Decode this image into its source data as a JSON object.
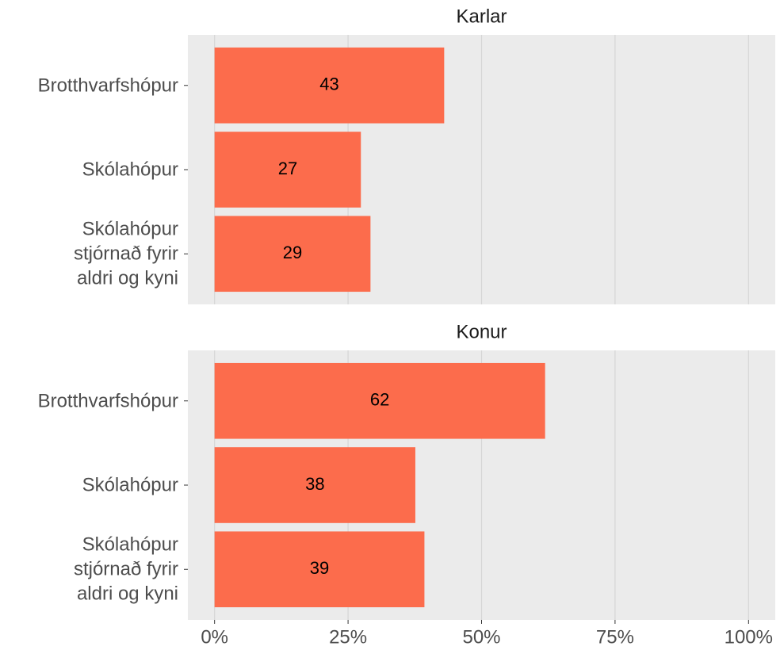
{
  "chart_data": [
    {
      "type": "bar",
      "title": "Karlar",
      "categories": [
        "Brotthvarfshópur",
        "Skólahópur",
        "Skólahópur\nstjórnað fyrir\naldri og kyni"
      ],
      "values": [
        43,
        27.4,
        29.2
      ],
      "value_labels": [
        "43",
        "27",
        "29"
      ],
      "color": "#fc6c4c",
      "xlim": [
        -5,
        105
      ],
      "xticks": [
        0,
        25,
        50,
        75,
        100
      ],
      "grid": true
    },
    {
      "type": "bar",
      "title": "Konur",
      "categories": [
        "Brotthvarfshópur",
        "Skólahópur",
        "Skólahópur\nstjórnað fyrir\naldri og kyni"
      ],
      "values": [
        61.9,
        37.6,
        39.3
      ],
      "value_labels": [
        "62",
        "38",
        "39"
      ],
      "color": "#fc6c4c",
      "xlim": [
        -5,
        105
      ],
      "xticks": [
        {
          "value": 0,
          "label": "0%"
        },
        {
          "value": 25,
          "label": "25%"
        },
        {
          "value": 50,
          "label": "50%"
        },
        {
          "value": 75,
          "label": "75%"
        },
        {
          "value": 100,
          "label": "100%"
        }
      ],
      "grid": true
    }
  ]
}
